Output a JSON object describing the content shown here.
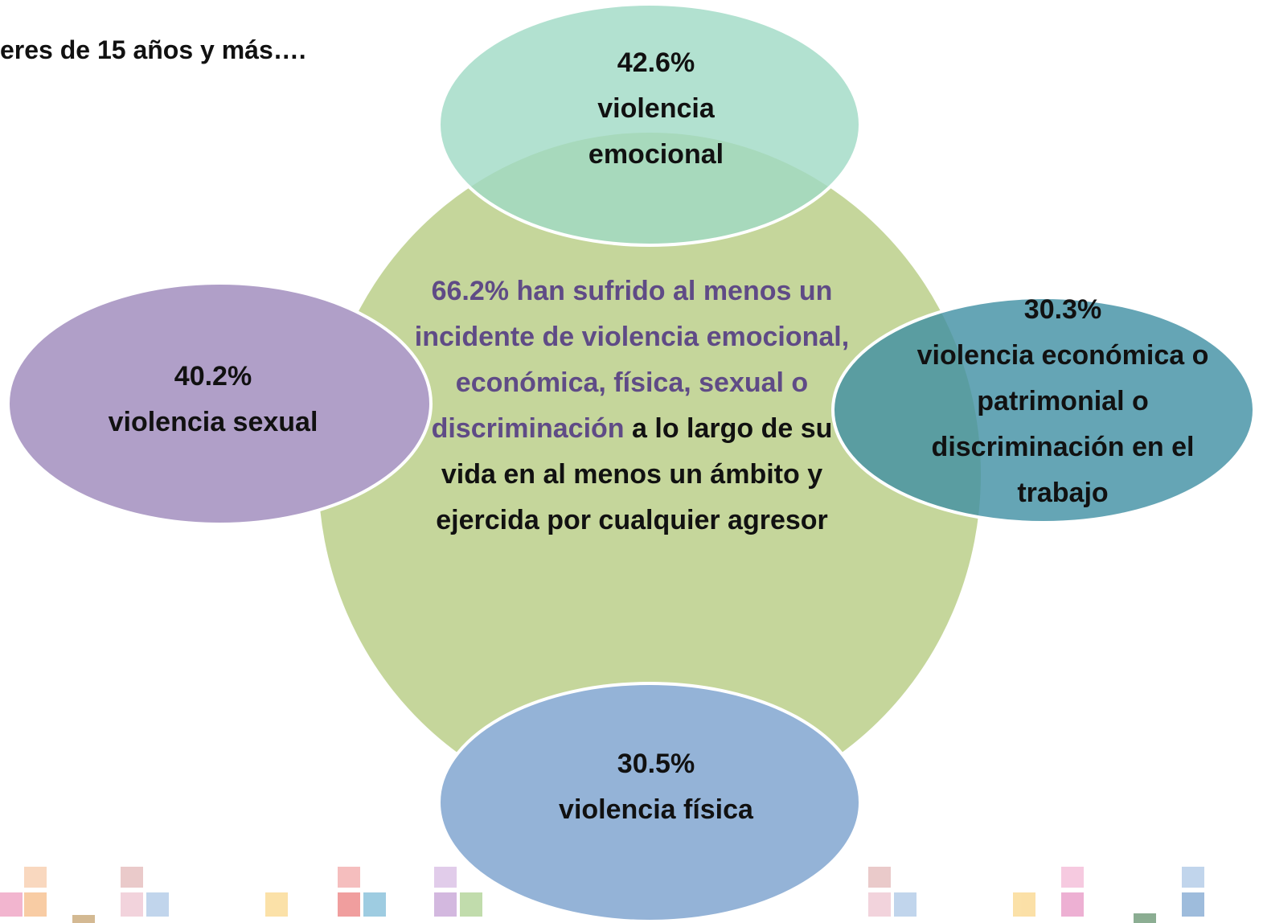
{
  "header": {
    "title": "eres de 15 años y más…."
  },
  "center": {
    "highlight": "66.2% han sufrido al menos un incidente de violencia emocional, económica, física, sexual o discriminación",
    "rest": "a lo largo de su vida en al menos un ámbito y ejercida por cualquier agresor"
  },
  "nodes": [
    {
      "value": "42.6%",
      "label": "violencia emocional"
    },
    {
      "value": "40.2%",
      "label": "violencia sexual"
    },
    {
      "value": "30.3%",
      "label": "violencia económica o patrimonial o discriminación en el trabajo"
    },
    {
      "value": "30.5%",
      "label": "violencia física"
    }
  ]
}
